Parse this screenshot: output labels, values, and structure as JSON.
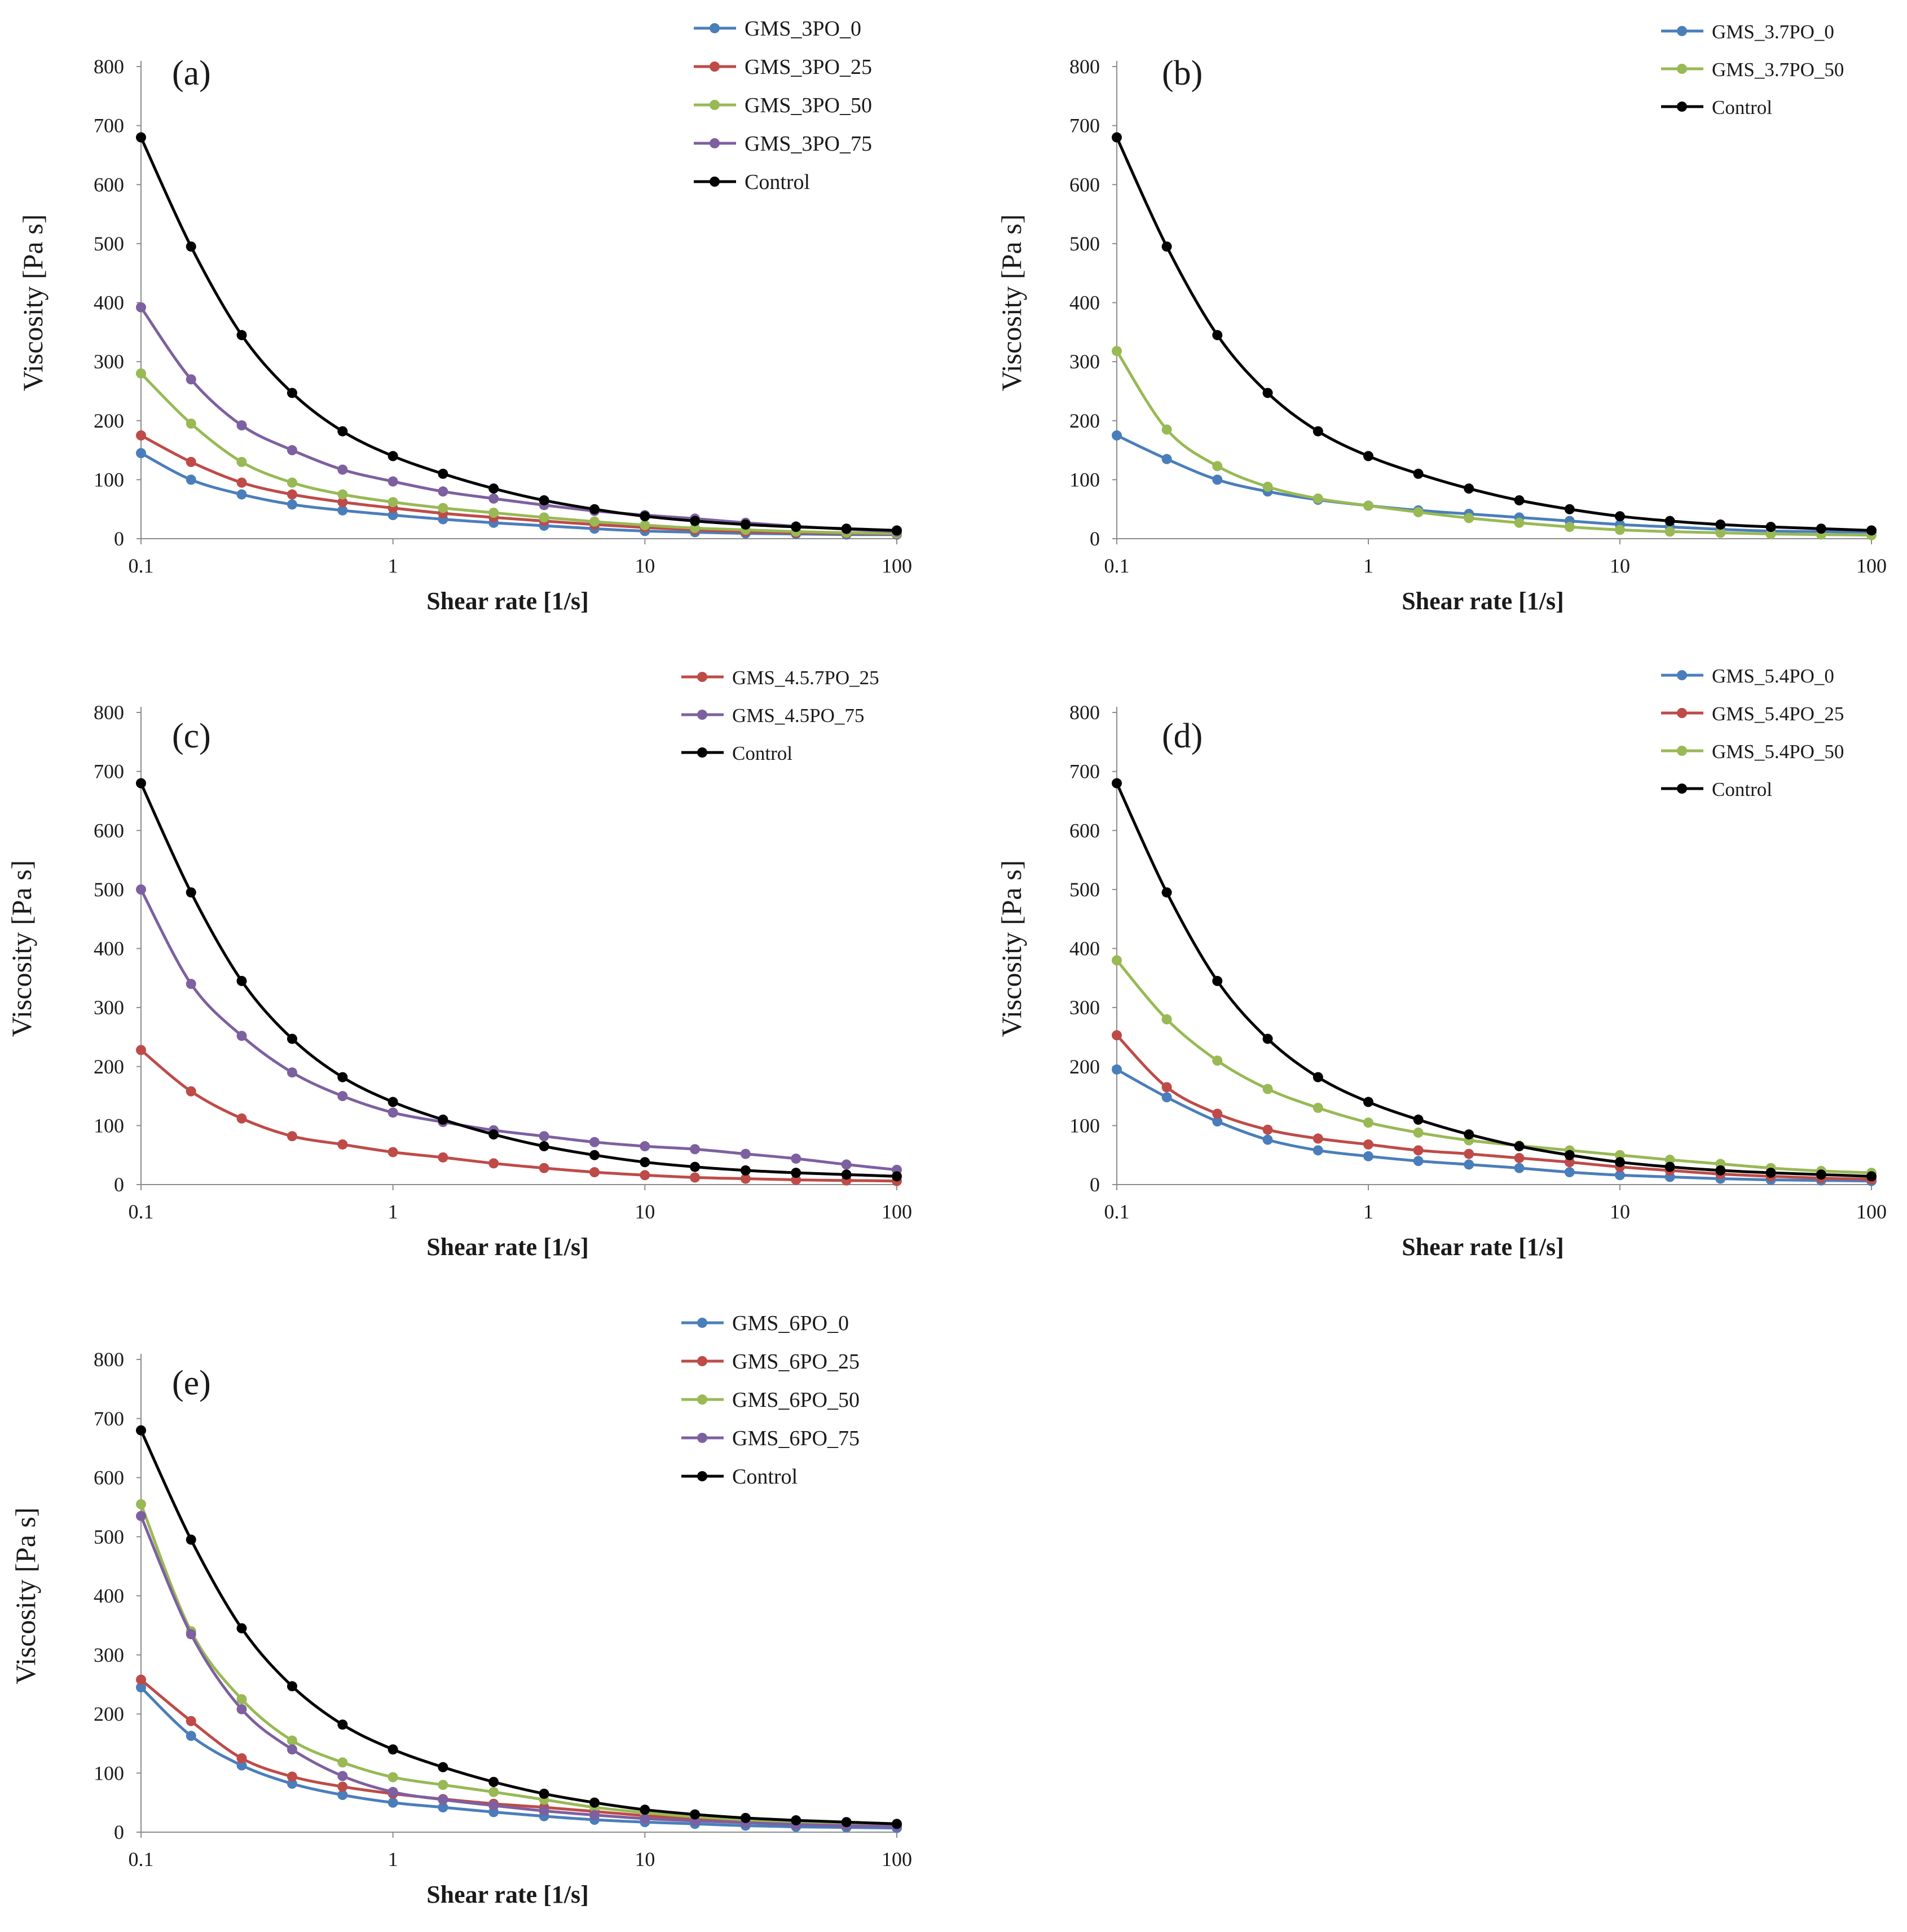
{
  "figure": {
    "panels": 5
  },
  "chart_data": [
    {
      "type": "line",
      "panel_label": "(a)",
      "xlabel": "Shear rate [1/s]",
      "ylabel": "Viscosity [Pa s]",
      "xscale": "log",
      "xlim": [
        0.1,
        100
      ],
      "ylim": [
        0,
        800
      ],
      "x_ticks": [
        "0.1",
        "1",
        "10",
        "100"
      ],
      "y_ticks": [
        "0",
        "100",
        "200",
        "300",
        "400",
        "500",
        "600",
        "700",
        "800"
      ],
      "legend_position": "top-right",
      "x": [
        0.1,
        0.158,
        0.251,
        0.398,
        0.631,
        1,
        1.58,
        2.51,
        3.98,
        6.31,
        10,
        15.8,
        25.1,
        39.8,
        63.1,
        100
      ],
      "series": [
        {
          "name": "GMS_3PO_0",
          "color": "#4a7ebb",
          "values": [
            145,
            100,
            75,
            58,
            48,
            40,
            33,
            27,
            22,
            17,
            13,
            11,
            9,
            8,
            7,
            7
          ]
        },
        {
          "name": "GMS_3PO_25",
          "color": "#be4b48",
          "values": [
            175,
            130,
            95,
            75,
            62,
            52,
            43,
            36,
            30,
            24,
            19,
            15,
            12,
            10,
            9,
            8
          ]
        },
        {
          "name": "GMS_3PO_50",
          "color": "#98b954",
          "values": [
            280,
            195,
            130,
            95,
            75,
            62,
            52,
            44,
            36,
            29,
            23,
            18,
            15,
            12,
            10,
            9
          ]
        },
        {
          "name": "GMS_3PO_75",
          "color": "#7d60a0",
          "values": [
            392,
            270,
            192,
            150,
            117,
            97,
            80,
            68,
            57,
            47,
            40,
            34,
            27,
            21,
            16,
            12
          ]
        },
        {
          "name": "Control",
          "color": "#000000",
          "values": [
            680,
            495,
            345,
            247,
            182,
            140,
            110,
            85,
            65,
            50,
            38,
            30,
            24,
            20,
            17,
            14
          ]
        }
      ]
    },
    {
      "type": "line",
      "panel_label": "(b)",
      "xlabel": "Shear rate [1/s]",
      "ylabel": "Viscosity [Pa s]",
      "xscale": "log",
      "xlim": [
        0.1,
        100
      ],
      "ylim": [
        0,
        800
      ],
      "x_ticks": [
        "0.1",
        "1",
        "10",
        "100"
      ],
      "y_ticks": [
        "0",
        "100",
        "200",
        "300",
        "400",
        "500",
        "600",
        "700",
        "800"
      ],
      "legend_position": "top-right",
      "x": [
        0.1,
        0.158,
        0.251,
        0.398,
        0.631,
        1,
        1.58,
        2.51,
        3.98,
        6.31,
        10,
        15.8,
        25.1,
        39.8,
        63.1,
        100
      ],
      "series": [
        {
          "name": "GMS_3.7PO_0",
          "color": "#4a7ebb",
          "values": [
            175,
            135,
            100,
            80,
            66,
            56,
            48,
            42,
            36,
            30,
            24,
            20,
            16,
            13,
            12,
            11
          ]
        },
        {
          "name": "GMS_3.7PO_50",
          "color": "#98b954",
          "values": [
            318,
            185,
            123,
            88,
            68,
            56,
            45,
            35,
            27,
            20,
            15,
            12,
            10,
            8,
            7,
            6
          ]
        },
        {
          "name": "Control",
          "color": "#000000",
          "values": [
            680,
            495,
            345,
            247,
            182,
            140,
            110,
            85,
            65,
            50,
            38,
            30,
            24,
            20,
            17,
            14
          ]
        }
      ]
    },
    {
      "type": "line",
      "panel_label": "(c)",
      "xlabel": "Shear rate [1/s]",
      "ylabel": "Viscosity [Pa s]",
      "xscale": "log",
      "xlim": [
        0.1,
        100
      ],
      "ylim": [
        0,
        800
      ],
      "x_ticks": [
        "0.1",
        "1",
        "10",
        "100"
      ],
      "y_ticks": [
        "0",
        "100",
        "200",
        "300",
        "400",
        "500",
        "600",
        "700",
        "800"
      ],
      "legend_position": "top-right",
      "x": [
        0.1,
        0.158,
        0.251,
        0.398,
        0.631,
        1,
        1.58,
        2.51,
        3.98,
        6.31,
        10,
        15.8,
        25.1,
        39.8,
        63.1,
        100
      ],
      "series": [
        {
          "name": "GMS_4.5.7PO_25",
          "color": "#be4b48",
          "values": [
            228,
            158,
            112,
            82,
            68,
            55,
            46,
            36,
            28,
            21,
            16,
            12,
            10,
            8,
            7,
            6
          ]
        },
        {
          "name": "GMS_4.5PO_75",
          "color": "#7d60a0",
          "values": [
            500,
            340,
            252,
            190,
            150,
            122,
            106,
            92,
            82,
            72,
            65,
            60,
            52,
            44,
            34,
            25
          ]
        },
        {
          "name": "Control",
          "color": "#000000",
          "values": [
            680,
            495,
            345,
            247,
            182,
            140,
            110,
            85,
            65,
            50,
            38,
            30,
            24,
            20,
            17,
            14
          ]
        }
      ]
    },
    {
      "type": "line",
      "panel_label": "(d)",
      "xlabel": "Shear rate [1/s]",
      "ylabel": "Viscosity [Pa s]",
      "xscale": "log",
      "xlim": [
        0.1,
        100
      ],
      "ylim": [
        0,
        800
      ],
      "x_ticks": [
        "0.1",
        "1",
        "10",
        "100"
      ],
      "y_ticks": [
        "0",
        "100",
        "200",
        "300",
        "400",
        "500",
        "600",
        "700",
        "800"
      ],
      "legend_position": "top-right",
      "x": [
        0.1,
        0.158,
        0.251,
        0.398,
        0.631,
        1,
        1.58,
        2.51,
        3.98,
        6.31,
        10,
        15.8,
        25.1,
        39.8,
        63.1,
        100
      ],
      "series": [
        {
          "name": "GMS_5.4PO_0",
          "color": "#4a7ebb",
          "values": [
            195,
            148,
            107,
            76,
            58,
            48,
            40,
            34,
            28,
            21,
            16,
            13,
            10,
            8,
            7,
            6
          ]
        },
        {
          "name": "GMS_5.4PO_25",
          "color": "#be4b48",
          "values": [
            253,
            165,
            120,
            93,
            78,
            68,
            58,
            52,
            45,
            38,
            30,
            24,
            18,
            14,
            11,
            9
          ]
        },
        {
          "name": "GMS_5.4PO_50",
          "color": "#98b954",
          "values": [
            380,
            280,
            210,
            162,
            130,
            105,
            88,
            75,
            66,
            58,
            50,
            42,
            35,
            28,
            23,
            20
          ]
        },
        {
          "name": "Control",
          "color": "#000000",
          "values": [
            680,
            495,
            345,
            247,
            182,
            140,
            110,
            85,
            65,
            50,
            38,
            30,
            24,
            20,
            17,
            14
          ]
        }
      ]
    },
    {
      "type": "line",
      "panel_label": "(e)",
      "xlabel": "Shear rate [1/s]",
      "ylabel": "Viscosity [Pa s]",
      "xscale": "log",
      "xlim": [
        0.1,
        100
      ],
      "ylim": [
        0,
        800
      ],
      "x_ticks": [
        "0.1",
        "1",
        "10",
        "100"
      ],
      "y_ticks": [
        "0",
        "100",
        "200",
        "300",
        "400",
        "500",
        "600",
        "700",
        "800"
      ],
      "legend_position": "top-right",
      "x": [
        0.1,
        0.158,
        0.251,
        0.398,
        0.631,
        1,
        1.58,
        2.51,
        3.98,
        6.31,
        10,
        15.8,
        25.1,
        39.8,
        63.1,
        100
      ],
      "series": [
        {
          "name": "GMS_6PO_0",
          "color": "#4a7ebb",
          "values": [
            245,
            163,
            113,
            82,
            63,
            50,
            42,
            34,
            27,
            21,
            17,
            14,
            11,
            9,
            8,
            7
          ]
        },
        {
          "name": "GMS_6PO_25",
          "color": "#be4b48",
          "values": [
            258,
            188,
            125,
            94,
            77,
            65,
            56,
            48,
            42,
            35,
            28,
            22,
            18,
            15,
            12,
            10
          ]
        },
        {
          "name": "GMS_6PO_50",
          "color": "#98b954",
          "values": [
            555,
            340,
            225,
            155,
            118,
            93,
            80,
            68,
            55,
            42,
            33,
            26,
            21,
            17,
            15,
            13
          ]
        },
        {
          "name": "GMS_6PO_75",
          "color": "#7d60a0",
          "values": [
            535,
            335,
            208,
            140,
            95,
            68,
            55,
            45,
            36,
            29,
            23,
            19,
            16,
            13,
            11,
            10
          ]
        },
        {
          "name": "Control",
          "color": "#000000",
          "values": [
            680,
            495,
            345,
            247,
            182,
            140,
            110,
            85,
            65,
            50,
            38,
            30,
            24,
            20,
            17,
            14
          ]
        }
      ]
    }
  ]
}
